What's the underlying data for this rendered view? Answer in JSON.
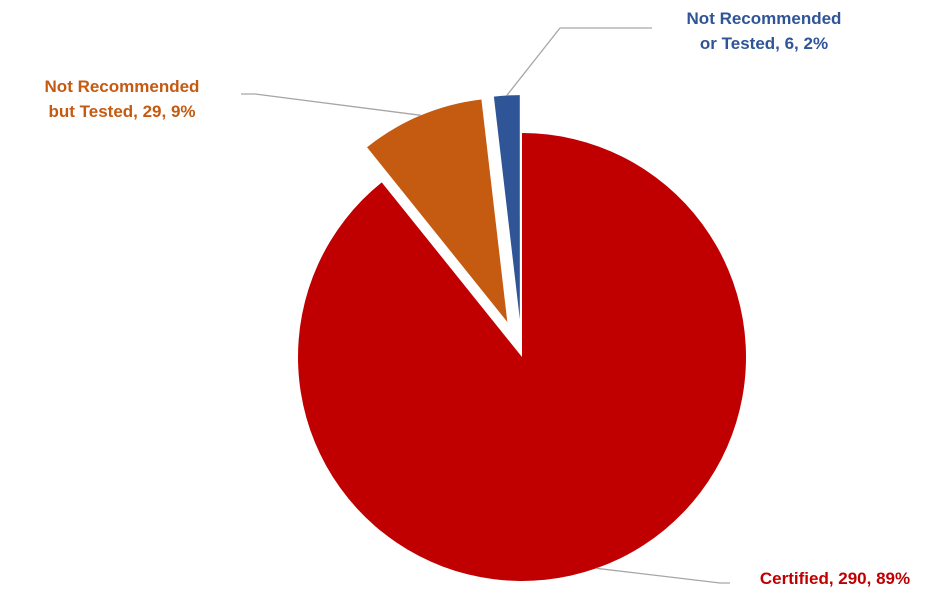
{
  "chart_data": {
    "type": "pie",
    "title": "",
    "slices": [
      {
        "label": "Certified",
        "value": 290,
        "percent": "89%",
        "color": "#C00000",
        "label_line1": "Certified, 290, 89%",
        "label_line2": ""
      },
      {
        "label": "Not Recommended but Tested",
        "value": 29,
        "percent": "9%",
        "color": "#C55A11",
        "label_line1": "Not Recommended",
        "label_line2": "but Tested, 29, 9%"
      },
      {
        "label": "Not Recommended or Tested",
        "value": 6,
        "percent": "2%",
        "color": "#2F5597",
        "label_line1": "Not Recommended",
        "label_line2": "or Tested, 6, 2%"
      }
    ],
    "exploded": [
      "Not Recommended but Tested",
      "Not Recommended or Tested"
    ],
    "legend": "none",
    "leader_line_color": "#A6A6A6"
  }
}
